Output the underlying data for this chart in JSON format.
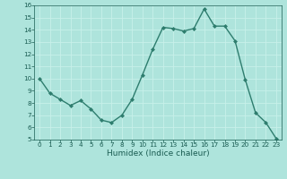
{
  "x": [
    0,
    1,
    2,
    3,
    4,
    5,
    6,
    7,
    8,
    9,
    10,
    11,
    12,
    13,
    14,
    15,
    16,
    17,
    18,
    19,
    20,
    21,
    22,
    23
  ],
  "y": [
    10.0,
    8.8,
    8.3,
    7.8,
    8.2,
    7.5,
    6.6,
    6.4,
    7.0,
    8.3,
    10.3,
    12.4,
    14.2,
    14.1,
    13.9,
    14.1,
    15.7,
    14.3,
    14.3,
    13.1,
    9.9,
    7.2,
    6.4,
    5.1
  ],
  "line_color": "#2e7d6e",
  "marker": "D",
  "markersize": 2.0,
  "linewidth": 1.0,
  "bg_color": "#aee4dc",
  "grid_color": "#c8f0ea",
  "xlabel": "Humidex (Indice chaleur)",
  "xlabel_fontsize": 6.5,
  "xlabel_color": "#1a5c52",
  "tick_color": "#1a5c52",
  "tick_fontsize": 5.2,
  "ylim": [
    5,
    16
  ],
  "yticks": [
    5,
    6,
    7,
    8,
    9,
    10,
    11,
    12,
    13,
    14,
    15,
    16
  ],
  "xticks": [
    0,
    1,
    2,
    3,
    4,
    5,
    6,
    7,
    8,
    9,
    10,
    11,
    12,
    13,
    14,
    15,
    16,
    17,
    18,
    19,
    20,
    21,
    22,
    23
  ]
}
